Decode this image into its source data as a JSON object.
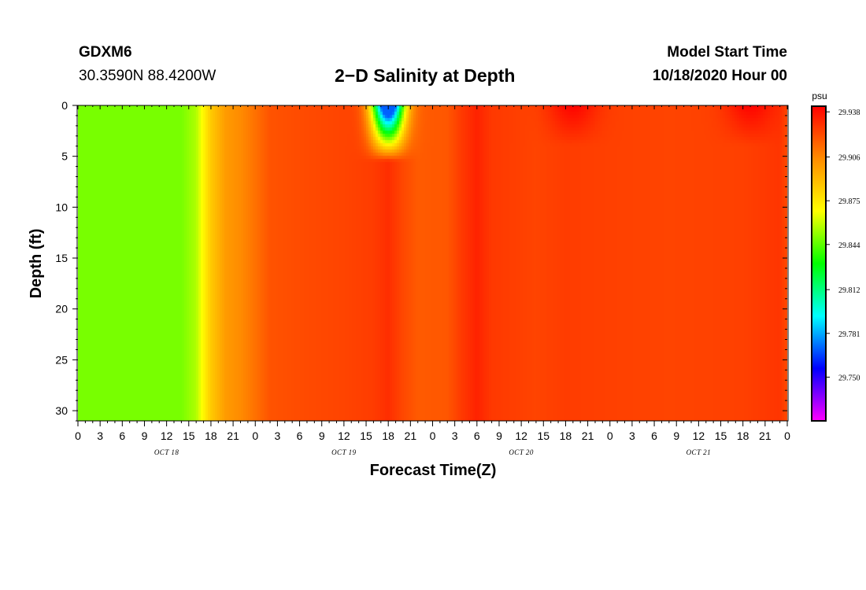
{
  "header": {
    "station_id": "GDXM6",
    "coordinates": "30.3590N 88.4200W",
    "title": "2−D Salinity at Depth",
    "model_start_label": "Model Start Time",
    "model_start_value": "10/18/2020 Hour 00"
  },
  "chart_data": {
    "type": "heatmap",
    "title": "2−D Salinity at Depth",
    "xlabel": "Forecast Time(Z)",
    "ylabel": "Depth (ft)",
    "x_tick_labels": [
      "0",
      "3",
      "6",
      "9",
      "12",
      "15",
      "18",
      "21",
      "0",
      "3",
      "6",
      "9",
      "12",
      "15",
      "18",
      "21",
      "0",
      "3",
      "6",
      "9",
      "12",
      "15",
      "18",
      "21",
      "0",
      "3",
      "6",
      "9",
      "12",
      "15",
      "18",
      "21",
      "0"
    ],
    "day_labels": [
      "OCT 18",
      "OCT 19",
      "OCT 20",
      "OCT 21"
    ],
    "x_range_hours": [
      0,
      96
    ],
    "y_tick_labels": [
      "0",
      "5",
      "10",
      "15",
      "20",
      "25",
      "30"
    ],
    "y_range_ft": [
      0,
      31
    ],
    "y_inverted": true,
    "colorbar": {
      "unit": "psu",
      "labels": [
        "29.938",
        "29.906",
        "29.875",
        "29.844",
        "29.812",
        "29.781",
        "29.750"
      ],
      "range": [
        29.719,
        29.942
      ],
      "colors": [
        "#ff00ff",
        "#0000ff",
        "#00ffff",
        "#00ff00",
        "#ffff00",
        "#ff8c00",
        "#ff0000"
      ]
    },
    "time_profile": [
      {
        "h": 0,
        "v": 29.848
      },
      {
        "h": 14,
        "v": 29.848
      },
      {
        "h": 16,
        "v": 29.856
      },
      {
        "h": 18,
        "v": 29.885
      },
      {
        "h": 20,
        "v": 29.9
      },
      {
        "h": 22,
        "v": 29.905
      },
      {
        "h": 24,
        "v": 29.912
      },
      {
        "h": 26,
        "v": 29.92
      },
      {
        "h": 30,
        "v": 29.922
      },
      {
        "h": 36,
        "v": 29.924
      },
      {
        "h": 40,
        "v": 29.926
      },
      {
        "h": 42,
        "v": 29.93
      },
      {
        "h": 44,
        "v": 29.923
      },
      {
        "h": 46,
        "v": 29.918
      },
      {
        "h": 50,
        "v": 29.919
      },
      {
        "h": 52,
        "v": 29.927
      },
      {
        "h": 54,
        "v": 29.933
      },
      {
        "h": 56,
        "v": 29.927
      },
      {
        "h": 62,
        "v": 29.924
      },
      {
        "h": 66,
        "v": 29.926
      },
      {
        "h": 72,
        "v": 29.925
      },
      {
        "h": 80,
        "v": 29.924
      },
      {
        "h": 90,
        "v": 29.925
      },
      {
        "h": 95,
        "v": 29.928
      },
      {
        "h": 96,
        "v": 29.922
      }
    ],
    "surface_features": [
      {
        "h": 42,
        "max_depth_ft": 5.5,
        "min_value": 29.77,
        "note": "fresh surface plume"
      },
      {
        "h": 67,
        "max_depth_ft": 4,
        "max_value": 29.941
      },
      {
        "h": 91,
        "max_depth_ft": 4,
        "max_value": 29.941
      }
    ]
  }
}
